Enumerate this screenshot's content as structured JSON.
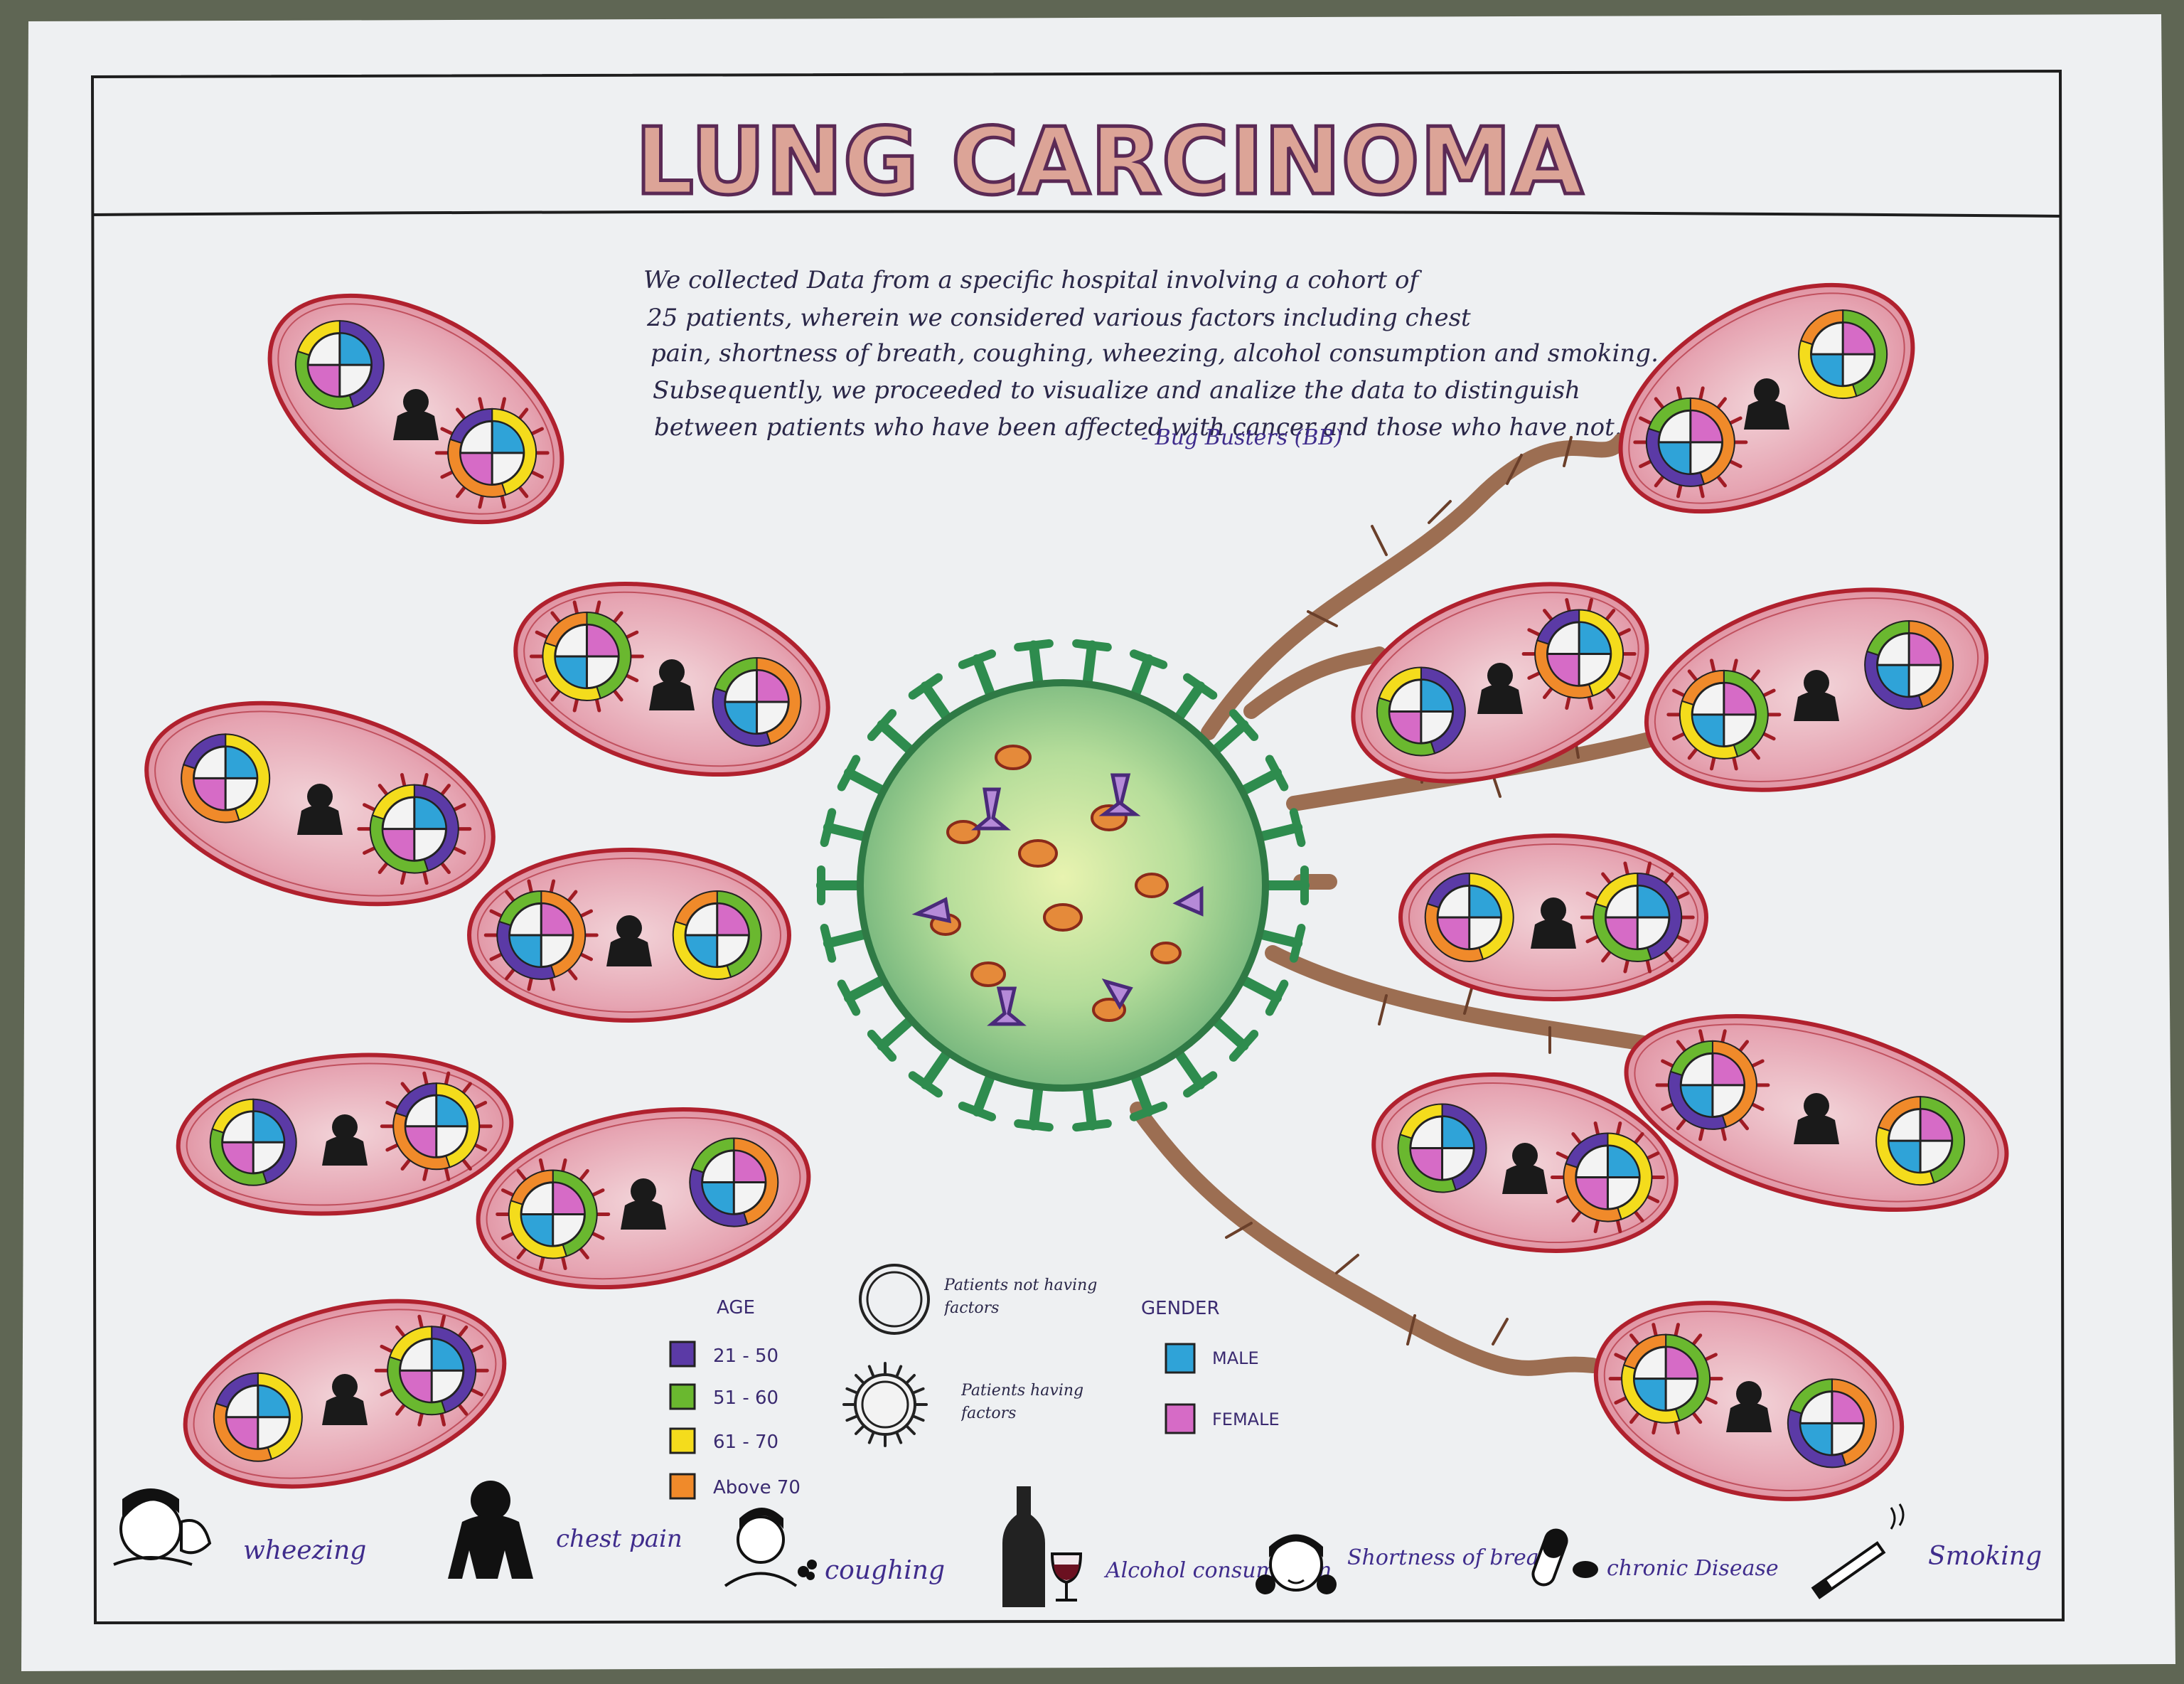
{
  "title": "LUNG CARCINOMA",
  "intro": {
    "lines": [
      "We collected Data from a specific hospital involving a cohort of",
      "25 patients, wherein we considered various factors including chest",
      "pain, shortness of breath, coughing, wheezing, alcohol consumption and smoking.",
      "Subsequently, we proceeded to visualize and analize the data to distinguish",
      "between patients who have been affected with cancer and those who have not."
    ],
    "signature": "- Bug Busters (BB)"
  },
  "legend": {
    "age": {
      "heading": "AGE",
      "items": [
        {
          "label": "21 - 50",
          "color": "#5b3aa6"
        },
        {
          "label": "51 - 60",
          "color": "#6ab82f"
        },
        {
          "label": "61 - 70",
          "color": "#f4dc1c"
        },
        {
          "label": "Above 70",
          "color": "#f08a2a"
        }
      ]
    },
    "patients": {
      "not_having": "Patients not having factors",
      "having": "Patients having factors"
    },
    "gender": {
      "heading": "GENDER",
      "items": [
        {
          "label": "MALE",
          "color": "#2fa3d8"
        },
        {
          "label": "FEMALE",
          "color": "#d66bc6"
        }
      ]
    }
  },
  "factors": [
    {
      "label": "wheezing",
      "icon": "wheezing-icon"
    },
    {
      "label": "chest pain",
      "icon": "chest-pain-icon"
    },
    {
      "label": "coughing",
      "icon": "coughing-icon"
    },
    {
      "label": "Alcohol consumption",
      "icon": "alcohol-icon"
    },
    {
      "label": "Shortness of breath",
      "icon": "shortness-of-breath-icon"
    },
    {
      "label": "chronic Disease",
      "icon": "chronic-disease-icon"
    },
    {
      "label": "Smoking",
      "icon": "smoking-icon"
    }
  ],
  "colors": {
    "paper": "#eceef0",
    "cell_fill": "#e9a3b0",
    "cell_border": "#b0212e",
    "virus": "#8fc98a",
    "virus_spike": "#2e8c4e",
    "branch": "#a87a5c"
  }
}
